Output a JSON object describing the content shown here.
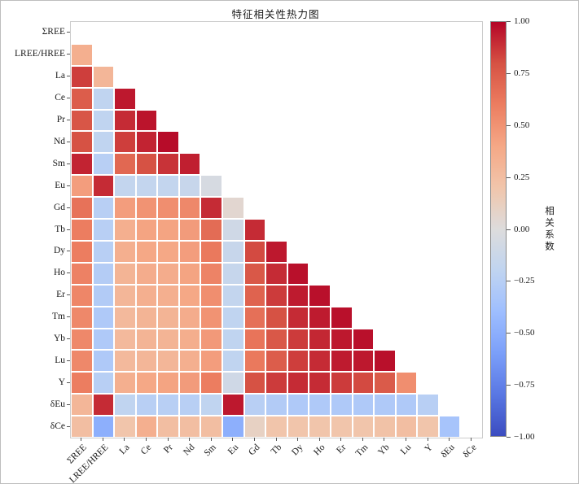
{
  "chart_data": {
    "type": "heatmap",
    "title": "特征相关性热力图",
    "mask": "upper-triangle-and-diagonal-hidden",
    "value_range": [
      -1,
      1
    ],
    "grid": "white 1px cell borders",
    "labels": [
      "ΣREE",
      "LREE/HREE",
      "La",
      "Ce",
      "Pr",
      "Nd",
      "Sm",
      "Eu",
      "Gd",
      "Tb",
      "Dy",
      "Ho",
      "Er",
      "Tm",
      "Yb",
      "Lu",
      "Y",
      "δEu",
      "δCe"
    ],
    "lower_triangle": [
      [],
      [
        0.35
      ],
      [
        0.85,
        0.3
      ],
      [
        0.75,
        -0.2,
        0.95
      ],
      [
        0.78,
        -0.2,
        0.9,
        0.96
      ],
      [
        0.8,
        -0.2,
        0.85,
        0.92,
        0.98
      ],
      [
        0.92,
        -0.25,
        0.7,
        0.8,
        0.88,
        0.93
      ],
      [
        0.45,
        0.9,
        -0.18,
        -0.18,
        -0.18,
        -0.15,
        -0.05
      ],
      [
        0.65,
        -0.25,
        0.45,
        0.5,
        0.52,
        0.55,
        0.9,
        0.05
      ],
      [
        0.6,
        -0.25,
        0.35,
        0.42,
        0.42,
        0.46,
        0.68,
        -0.1,
        0.9
      ],
      [
        0.6,
        -0.25,
        0.35,
        0.4,
        0.4,
        0.45,
        0.62,
        -0.15,
        0.82,
        0.95
      ],
      [
        0.58,
        -0.27,
        0.32,
        0.37,
        0.37,
        0.42,
        0.57,
        -0.16,
        0.77,
        0.9,
        0.97
      ],
      [
        0.56,
        -0.28,
        0.3,
        0.35,
        0.35,
        0.4,
        0.52,
        -0.18,
        0.72,
        0.86,
        0.94,
        0.97
      ],
      [
        0.55,
        -0.3,
        0.28,
        0.32,
        0.32,
        0.37,
        0.5,
        -0.2,
        0.66,
        0.8,
        0.9,
        0.94,
        0.97
      ],
      [
        0.55,
        -0.3,
        0.28,
        0.32,
        0.32,
        0.36,
        0.47,
        -0.2,
        0.64,
        0.77,
        0.86,
        0.91,
        0.95,
        0.97
      ],
      [
        0.55,
        -0.3,
        0.28,
        0.3,
        0.3,
        0.35,
        0.45,
        -0.2,
        0.62,
        0.75,
        0.85,
        0.9,
        0.94,
        0.95,
        0.97
      ],
      [
        0.6,
        -0.25,
        0.35,
        0.4,
        0.42,
        0.46,
        0.6,
        -0.1,
        0.8,
        0.86,
        0.9,
        0.9,
        0.86,
        0.82,
        0.76,
        0.52
      ],
      [
        0.3,
        0.9,
        -0.2,
        -0.25,
        -0.25,
        -0.25,
        -0.2,
        0.95,
        -0.25,
        -0.28,
        -0.3,
        -0.3,
        -0.3,
        -0.3,
        -0.3,
        -0.3,
        -0.25
      ],
      [
        0.25,
        -0.5,
        0.2,
        0.35,
        0.25,
        0.25,
        0.25,
        -0.5,
        0.1,
        0.2,
        0.2,
        0.2,
        0.2,
        0.2,
        0.22,
        0.25,
        0.2,
        -0.35
      ]
    ],
    "colorbar": {
      "label": "相关系数",
      "ticks": [
        "1.00",
        "0.75",
        "0.50",
        "0.25",
        "0.00",
        "−0.25",
        "−0.50",
        "−0.75",
        "−1.00"
      ],
      "tick_values": [
        1.0,
        0.75,
        0.5,
        0.25,
        0.0,
        -0.25,
        -0.5,
        -0.75,
        -1.0
      ],
      "position": "right"
    },
    "colormap": {
      "name": "coolwarm",
      "anchors": [
        [
          0.0,
          "#3b4cc0"
        ],
        [
          0.1,
          "#5977e3"
        ],
        [
          0.2,
          "#7b9ff9"
        ],
        [
          0.3,
          "#9ebeff"
        ],
        [
          0.4,
          "#c0d4f0"
        ],
        [
          0.5,
          "#dddcdc"
        ],
        [
          0.6,
          "#f1c5ab"
        ],
        [
          0.7,
          "#f5a886"
        ],
        [
          0.8,
          "#ec7d60"
        ],
        [
          0.9,
          "#d65244"
        ],
        [
          1.0,
          "#b40426"
        ]
      ]
    }
  }
}
